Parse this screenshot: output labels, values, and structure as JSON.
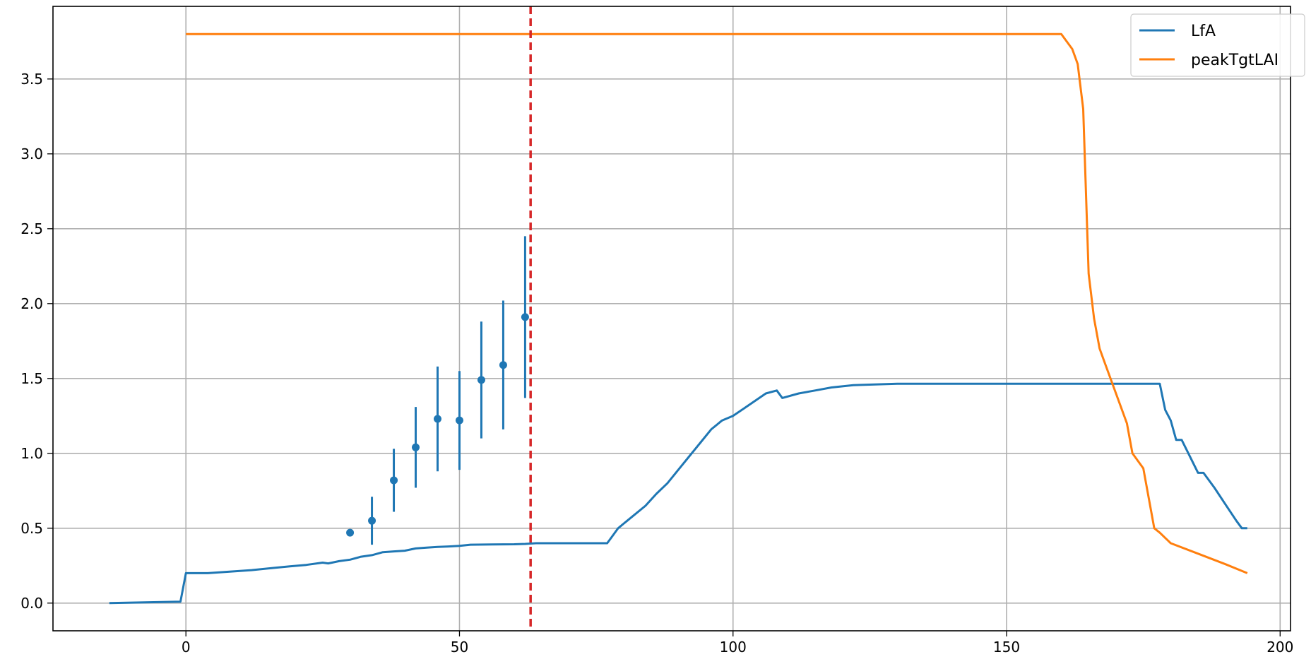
{
  "chart_data": {
    "type": "line",
    "title": "",
    "xlabel": "",
    "ylabel": "",
    "xlim": [
      -24.3,
      201.9
    ],
    "ylim": [
      -0.185,
      3.985
    ],
    "x_ticks": [
      0,
      50,
      100,
      150,
      200
    ],
    "y_ticks": [
      0.0,
      0.5,
      1.0,
      1.5,
      2.0,
      2.5,
      3.0,
      3.5
    ],
    "x_tick_labels": [
      "0",
      "50",
      "100",
      "150",
      "200"
    ],
    "y_tick_labels": [
      "0.0",
      "0.5",
      "1.0",
      "1.5",
      "2.0",
      "2.5",
      "3.0",
      "3.5"
    ],
    "grid": true,
    "legend_position": "top-right",
    "series": [
      {
        "name": "LfA",
        "color": "#1f77b4",
        "x": [
          -14,
          -1,
          0,
          4,
          8,
          12,
          16,
          19,
          22,
          25,
          26,
          28,
          30,
          32,
          34,
          36,
          38,
          40,
          42,
          44,
          46,
          48,
          50,
          52,
          56,
          60,
          62,
          64,
          70,
          77,
          78,
          79,
          80,
          82,
          84,
          86,
          88,
          90,
          92,
          94,
          96,
          98,
          100,
          102,
          104,
          106,
          108,
          109,
          112,
          115,
          118,
          122,
          126,
          130,
          150,
          170,
          178,
          179,
          180,
          181,
          182,
          185,
          186,
          188,
          190,
          192,
          193,
          194
        ],
        "y": [
          0.0,
          0.01,
          0.2,
          0.2,
          0.21,
          0.22,
          0.235,
          0.245,
          0.255,
          0.27,
          0.265,
          0.28,
          0.29,
          0.31,
          0.32,
          0.34,
          0.345,
          0.35,
          0.365,
          0.37,
          0.375,
          0.378,
          0.382,
          0.39,
          0.392,
          0.393,
          0.395,
          0.4,
          0.4,
          0.4,
          0.45,
          0.5,
          0.53,
          0.59,
          0.65,
          0.73,
          0.8,
          0.89,
          0.98,
          1.07,
          1.16,
          1.22,
          1.25,
          1.3,
          1.35,
          1.4,
          1.42,
          1.37,
          1.4,
          1.42,
          1.44,
          1.455,
          1.46,
          1.465,
          1.465,
          1.465,
          1.465,
          1.29,
          1.22,
          1.09,
          1.09,
          0.87,
          0.87,
          0.77,
          0.66,
          0.55,
          0.5,
          0.5
        ]
      },
      {
        "name": "peakTgtLAI",
        "color": "#ff7f0e",
        "x": [
          0,
          160,
          161,
          162,
          163,
          164,
          165,
          166,
          167,
          168,
          170,
          172,
          173,
          175,
          177,
          178,
          180,
          185,
          190,
          194
        ],
        "y": [
          3.8,
          3.8,
          3.75,
          3.7,
          3.6,
          3.3,
          2.2,
          1.9,
          1.7,
          1.6,
          1.4,
          1.2,
          1.0,
          0.9,
          0.5,
          0.47,
          0.4,
          0.33,
          0.26,
          0.2
        ]
      }
    ],
    "observations": {
      "color": "#1f77b4",
      "x": [
        30,
        34,
        38,
        42,
        46,
        50,
        54,
        58,
        62
      ],
      "y": [
        0.47,
        0.55,
        0.82,
        1.04,
        1.23,
        1.22,
        1.49,
        1.59,
        1.91
      ],
      "err": [
        0.0,
        0.16,
        0.21,
        0.27,
        0.35,
        0.33,
        0.39,
        0.43,
        0.54
      ]
    },
    "vline": {
      "x": 63,
      "color": "#d62728",
      "style": "dashed"
    }
  }
}
